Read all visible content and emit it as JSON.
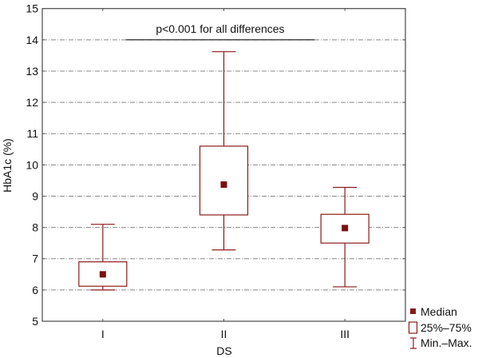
{
  "chart_data": {
    "type": "boxplot",
    "title": "",
    "xlabel": "DS",
    "ylabel": "HbA1c (%)",
    "ylim": [
      5,
      15
    ],
    "yticks": [
      5,
      6,
      7,
      8,
      9,
      10,
      11,
      12,
      13,
      14,
      15
    ],
    "grid": true,
    "categories": [
      "I",
      "II",
      "III"
    ],
    "boxes": [
      {
        "category": "I",
        "min": 6.0,
        "q1": 6.12,
        "median": 6.5,
        "q3": 6.9,
        "max": 8.1
      },
      {
        "category": "II",
        "min": 7.28,
        "q1": 8.4,
        "median": 9.37,
        "q3": 10.6,
        "max": 13.62
      },
      {
        "category": "III",
        "min": 6.1,
        "q1": 7.5,
        "median": 7.98,
        "q3": 8.42,
        "max": 9.28
      }
    ],
    "annotation": {
      "text": "p<0.001 for all differences",
      "y": 14,
      "x_from": 1.19,
      "x_to": 2.75
    },
    "legend": {
      "placement": "bottom-right-outside",
      "entries": [
        {
          "label": "Median",
          "symbol": "square-filled"
        },
        {
          "label": "25%–75%",
          "symbol": "square-open"
        },
        {
          "label": "Min.–Max.",
          "symbol": "whisker"
        }
      ]
    },
    "colors": {
      "box": "#8b1a1a",
      "median": "#7a1010",
      "grid": "#888888"
    }
  }
}
